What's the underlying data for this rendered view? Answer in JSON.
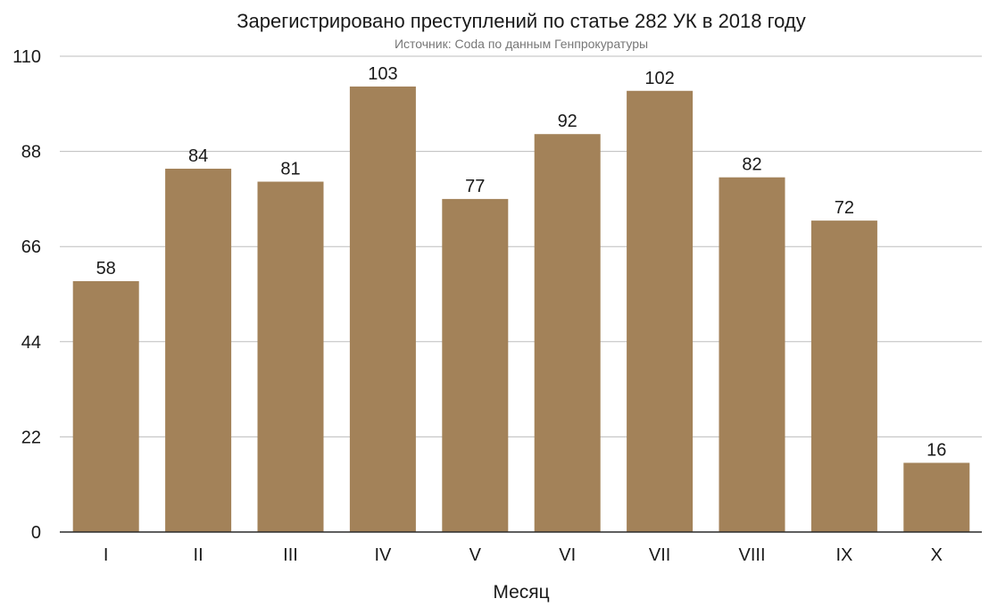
{
  "chart_data": {
    "type": "bar",
    "title": "Зарегистрировано преступлений по статье 282 УК в 2018 году",
    "subtitle": "Источник: Coda по данным Генпрокуратуры",
    "xlabel": "Месяц",
    "ylabel": "",
    "categories": [
      "I",
      "II",
      "III",
      "IV",
      "V",
      "VI",
      "VII",
      "VIII",
      "IX",
      "X"
    ],
    "values": [
      58,
      84,
      81,
      103,
      77,
      92,
      102,
      82,
      72,
      16
    ],
    "ylim": [
      0,
      110
    ],
    "yticks": [
      0,
      22,
      44,
      66,
      88,
      110
    ],
    "grid": true,
    "bar_color": "#a38259",
    "data_labels": true
  }
}
